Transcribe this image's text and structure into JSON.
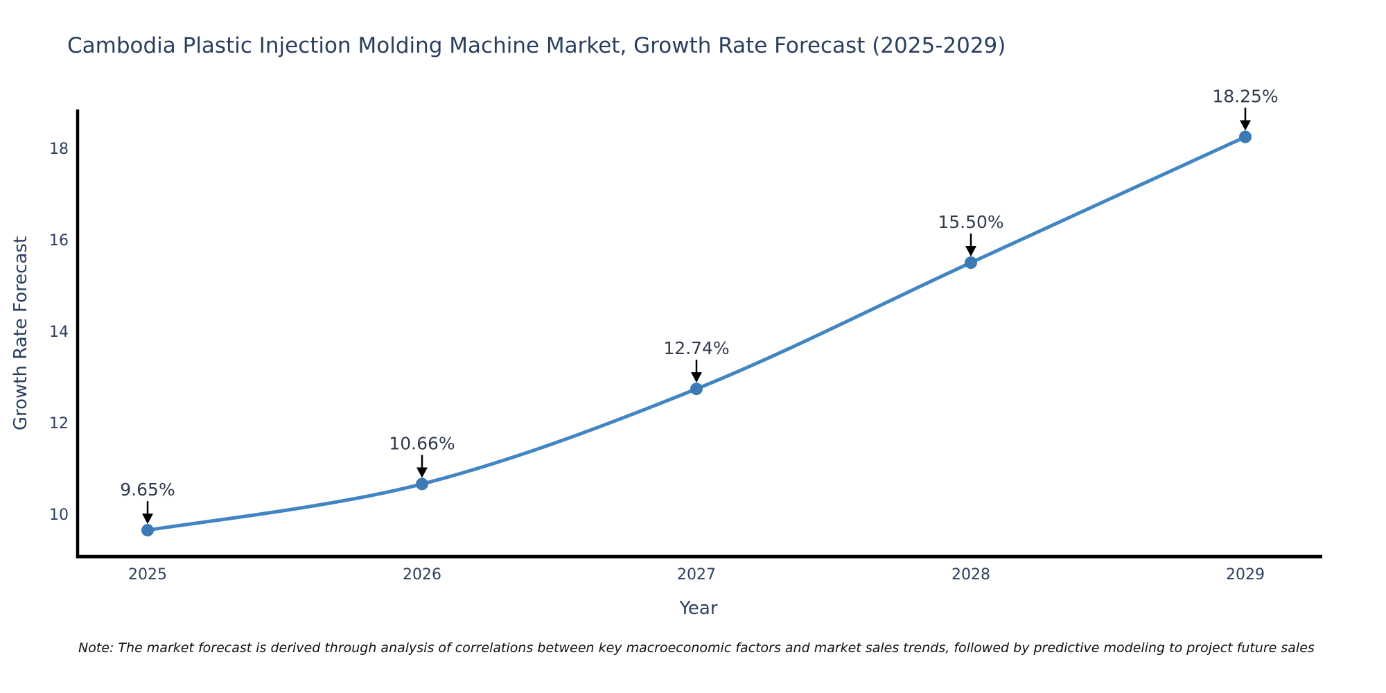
{
  "page": {
    "background_color": "#ffffff"
  },
  "chart_data": {
    "type": "line",
    "title": "Cambodia Plastic Injection Molding Machine Market, Growth Rate Forecast (2025-2029)",
    "xlabel": "Year",
    "ylabel": "Growth Rate Forecast",
    "x": [
      2025,
      2026,
      2027,
      2028,
      2029
    ],
    "series": [
      {
        "name": "Growth Rate Forecast",
        "values": [
          9.65,
          10.66,
          12.74,
          15.5,
          18.25
        ]
      }
    ],
    "point_labels": [
      "9.65%",
      "10.66%",
      "12.74%",
      "15.50%",
      "18.25%"
    ],
    "x_tick_labels": [
      "2025",
      "2026",
      "2027",
      "2028",
      "2029"
    ],
    "y_tick_values": [
      10,
      12,
      14,
      16,
      18
    ],
    "y_tick_labels": [
      "10",
      "12",
      "14",
      "16",
      "18"
    ],
    "xlim": [
      2024.74,
      2029.28
    ],
    "ylim": [
      9.05,
      18.97
    ],
    "grid": false,
    "legend": false,
    "line_shape": "spline",
    "line_color": "#4285c2",
    "marker_color": "#3c7ab5",
    "arrow_color": "#000000",
    "axis_color": "#000000",
    "text_color": "#2a3f5f",
    "note": "Note: The market forecast is derived through analysis of correlations between key macroeconomic factors and market sales trends, followed by predictive modeling to project future sales"
  }
}
